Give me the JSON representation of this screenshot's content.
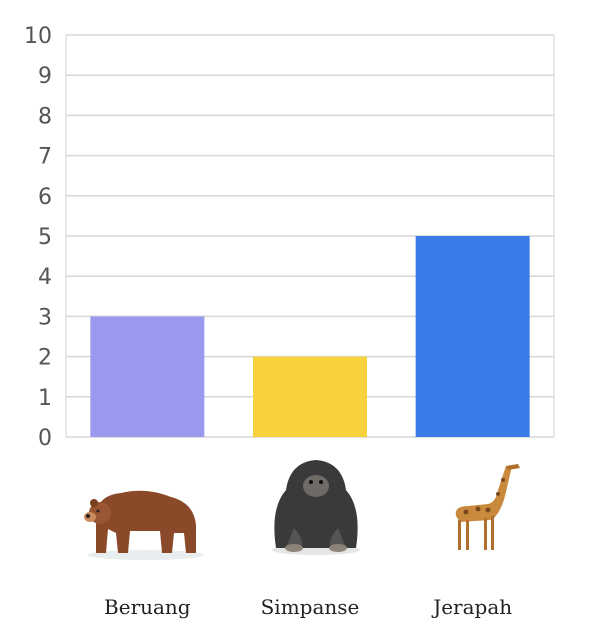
{
  "chart_data": {
    "type": "bar",
    "categories": [
      "Beruang",
      "Simpanse",
      "Jerapah"
    ],
    "values": [
      3,
      2,
      5
    ],
    "colors": [
      "#9999ee",
      "#f7d23c",
      "#3a7de8"
    ],
    "icons": [
      "bear-icon",
      "chimpanzee-icon",
      "giraffe-icon"
    ],
    "ylim": [
      0,
      10
    ],
    "yticks": [
      "0",
      "1",
      "2",
      "3",
      "4",
      "5",
      "6",
      "7",
      "8",
      "9",
      "10"
    ],
    "grid": true
  }
}
